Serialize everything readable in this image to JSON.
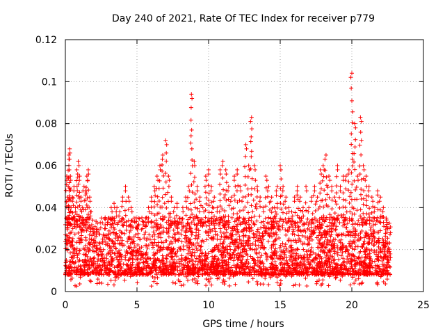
{
  "chart_data": {
    "type": "scatter",
    "title": "Day 240 of 2021, Rate Of TEC Index for receiver p779",
    "xlabel": "GPS time / hours",
    "ylabel": "ROTI / TECUs",
    "xlim": [
      0,
      25
    ],
    "ylim": [
      0,
      0.12
    ],
    "x_ticks": [
      0,
      5,
      10,
      15,
      20,
      25
    ],
    "x_tick_labels": [
      "0",
      "5",
      "10",
      "15",
      "20",
      "25"
    ],
    "y_ticks": [
      0,
      0.02,
      0.04,
      0.06,
      0.08,
      0.1,
      0.12
    ],
    "y_tick_labels": [
      "0",
      "0.02",
      "0.04",
      "0.06",
      "0.08",
      "0.1",
      "0.12"
    ],
    "grid": true,
    "marker": "plus",
    "marker_color": "#ff0000",
    "series": [
      {
        "name": "ROTI",
        "x": [
          0.05,
          0.1,
          0.15,
          0.2,
          0.25,
          0.3,
          0.35,
          0.4,
          0.5,
          0.6,
          0.7,
          0.8,
          0.9,
          1.0,
          1.1,
          1.2,
          1.3,
          1.4,
          1.5,
          1.6,
          1.7,
          1.8,
          1.9,
          2.0,
          2.2,
          2.4,
          2.6,
          2.8,
          3.0,
          3.2,
          3.4,
          3.6,
          3.8,
          4.0,
          4.2,
          4.4,
          4.6,
          4.8,
          5.0,
          5.2,
          5.4,
          5.6,
          5.8,
          6.0,
          6.2,
          6.4,
          6.6,
          6.8,
          7.0,
          7.2,
          7.4,
          7.6,
          7.8,
          8.0,
          8.2,
          8.4,
          8.6,
          8.8,
          9.0,
          9.2,
          9.4,
          9.6,
          9.8,
          10.0,
          10.2,
          10.4,
          10.6,
          10.8,
          11.0,
          11.2,
          11.4,
          11.6,
          11.8,
          12.0,
          12.2,
          12.4,
          12.6,
          12.8,
          13.0,
          13.2,
          13.4,
          13.6,
          13.8,
          14.0,
          14.2,
          14.4,
          14.6,
          14.8,
          15.0,
          15.2,
          15.4,
          15.6,
          15.8,
          16.0,
          16.2,
          16.4,
          16.6,
          16.8,
          17.0,
          17.2,
          17.4,
          17.6,
          17.8,
          18.0,
          18.2,
          18.4,
          18.6,
          18.8,
          19.0,
          19.2,
          19.4,
          19.6,
          19.8,
          20.0,
          20.2,
          20.4,
          20.6,
          20.8,
          21.0,
          21.2,
          21.4,
          21.6,
          21.8,
          22.0,
          22.2,
          22.4,
          22.6,
          22.7
        ],
        "y": [
          0.035,
          0.055,
          0.045,
          0.05,
          0.065,
          0.068,
          0.055,
          0.04,
          0.045,
          0.05,
          0.04,
          0.058,
          0.062,
          0.055,
          0.045,
          0.04,
          0.05,
          0.048,
          0.055,
          0.058,
          0.045,
          0.038,
          0.03,
          0.025,
          0.022,
          0.02,
          0.025,
          0.03,
          0.035,
          0.04,
          0.042,
          0.04,
          0.038,
          0.045,
          0.05,
          0.045,
          0.04,
          0.035,
          0.03,
          0.025,
          0.03,
          0.035,
          0.04,
          0.045,
          0.05,
          0.055,
          0.06,
          0.065,
          0.072,
          0.055,
          0.045,
          0.04,
          0.042,
          0.035,
          0.04,
          0.045,
          0.05,
          0.094,
          0.062,
          0.05,
          0.045,
          0.04,
          0.055,
          0.058,
          0.05,
          0.045,
          0.04,
          0.058,
          0.062,
          0.058,
          0.05,
          0.045,
          0.055,
          0.058,
          0.05,
          0.045,
          0.07,
          0.06,
          0.083,
          0.06,
          0.05,
          0.045,
          0.04,
          0.055,
          0.05,
          0.045,
          0.04,
          0.05,
          0.06,
          0.05,
          0.045,
          0.04,
          0.038,
          0.045,
          0.05,
          0.045,
          0.04,
          0.05,
          0.04,
          0.045,
          0.05,
          0.045,
          0.058,
          0.06,
          0.065,
          0.055,
          0.05,
          0.045,
          0.06,
          0.05,
          0.055,
          0.055,
          0.058,
          0.104,
          0.08,
          0.055,
          0.083,
          0.06,
          0.055,
          0.05,
          0.045,
          0.04,
          0.048,
          0.045,
          0.04,
          0.035,
          0.03,
          0.028
        ]
      }
    ],
    "band": {
      "description": "dense background cloud of points",
      "x_range": [
        0,
        22.7
      ],
      "y_typical_low": 0.008,
      "y_typical_high": 0.03
    }
  }
}
